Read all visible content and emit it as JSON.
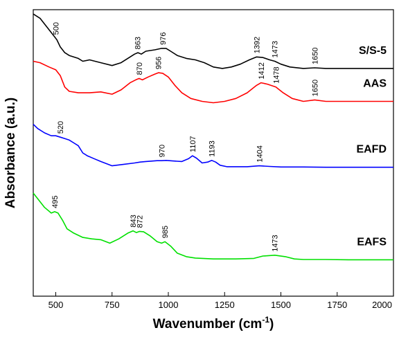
{
  "chart_data": {
    "type": "line",
    "xlabel": "Wavenumber (cm",
    "xlabel_sup": "-1",
    "xlabel_tail": ")",
    "ylabel": "Absorbance (a.u.)",
    "xlim": [
      400,
      2000
    ],
    "ylim": [
      0,
      1
    ],
    "x_ticks": [
      500,
      750,
      1000,
      1250,
      1500,
      1750,
      2000
    ],
    "grid": false,
    "series": [
      {
        "name": "S/S-5",
        "color": "#000000",
        "points": [
          [
            400,
            0.985
          ],
          [
            430,
            0.97
          ],
          [
            460,
            0.94
          ],
          [
            490,
            0.91
          ],
          [
            505,
            0.895
          ],
          [
            520,
            0.87
          ],
          [
            540,
            0.85
          ],
          [
            560,
            0.84
          ],
          [
            600,
            0.83
          ],
          [
            620,
            0.82
          ],
          [
            650,
            0.825
          ],
          [
            700,
            0.815
          ],
          [
            750,
            0.805
          ],
          [
            790,
            0.815
          ],
          [
            830,
            0.835
          ],
          [
            850,
            0.845
          ],
          [
            865,
            0.85
          ],
          [
            880,
            0.845
          ],
          [
            900,
            0.855
          ],
          [
            940,
            0.86
          ],
          [
            970,
            0.865
          ],
          [
            990,
            0.865
          ],
          [
            1010,
            0.855
          ],
          [
            1040,
            0.84
          ],
          [
            1080,
            0.83
          ],
          [
            1120,
            0.825
          ],
          [
            1160,
            0.815
          ],
          [
            1200,
            0.8
          ],
          [
            1240,
            0.795
          ],
          [
            1280,
            0.8
          ],
          [
            1320,
            0.81
          ],
          [
            1360,
            0.825
          ],
          [
            1392,
            0.835
          ],
          [
            1420,
            0.833
          ],
          [
            1450,
            0.825
          ],
          [
            1473,
            0.82
          ],
          [
            1500,
            0.81
          ],
          [
            1540,
            0.8
          ],
          [
            1600,
            0.795
          ],
          [
            1650,
            0.797
          ],
          [
            1700,
            0.795
          ],
          [
            1800,
            0.795
          ],
          [
            1900,
            0.795
          ],
          [
            2000,
            0.795
          ]
        ]
      },
      {
        "name": "AAS",
        "color": "#ff0000",
        "points": [
          [
            400,
            0.82
          ],
          [
            430,
            0.815
          ],
          [
            470,
            0.8
          ],
          [
            500,
            0.79
          ],
          [
            520,
            0.77
          ],
          [
            540,
            0.73
          ],
          [
            560,
            0.715
          ],
          [
            600,
            0.71
          ],
          [
            650,
            0.71
          ],
          [
            700,
            0.713
          ],
          [
            750,
            0.705
          ],
          [
            790,
            0.72
          ],
          [
            830,
            0.745
          ],
          [
            855,
            0.755
          ],
          [
            870,
            0.76
          ],
          [
            885,
            0.755
          ],
          [
            910,
            0.765
          ],
          [
            940,
            0.775
          ],
          [
            956,
            0.78
          ],
          [
            975,
            0.778
          ],
          [
            1000,
            0.765
          ],
          [
            1030,
            0.735
          ],
          [
            1060,
            0.71
          ],
          [
            1100,
            0.69
          ],
          [
            1150,
            0.68
          ],
          [
            1200,
            0.675
          ],
          [
            1250,
            0.68
          ],
          [
            1300,
            0.69
          ],
          [
            1350,
            0.71
          ],
          [
            1390,
            0.735
          ],
          [
            1412,
            0.745
          ],
          [
            1440,
            0.74
          ],
          [
            1478,
            0.73
          ],
          [
            1510,
            0.71
          ],
          [
            1550,
            0.69
          ],
          [
            1600,
            0.68
          ],
          [
            1650,
            0.685
          ],
          [
            1700,
            0.68
          ],
          [
            1800,
            0.68
          ],
          [
            1900,
            0.68
          ],
          [
            2000,
            0.68
          ]
        ]
      },
      {
        "name": "EAFD",
        "color": "#0000ff",
        "points": [
          [
            400,
            0.6
          ],
          [
            420,
            0.585
          ],
          [
            450,
            0.57
          ],
          [
            480,
            0.56
          ],
          [
            500,
            0.56
          ],
          [
            520,
            0.555
          ],
          [
            540,
            0.55
          ],
          [
            560,
            0.545
          ],
          [
            580,
            0.535
          ],
          [
            600,
            0.525
          ],
          [
            620,
            0.5
          ],
          [
            640,
            0.49
          ],
          [
            670,
            0.48
          ],
          [
            700,
            0.47
          ],
          [
            750,
            0.455
          ],
          [
            800,
            0.46
          ],
          [
            850,
            0.465
          ],
          [
            875,
            0.468
          ],
          [
            900,
            0.47
          ],
          [
            950,
            0.473
          ],
          [
            970,
            0.473
          ],
          [
            990,
            0.474
          ],
          [
            1020,
            0.472
          ],
          [
            1060,
            0.47
          ],
          [
            1090,
            0.48
          ],
          [
            1107,
            0.49
          ],
          [
            1125,
            0.482
          ],
          [
            1150,
            0.465
          ],
          [
            1175,
            0.468
          ],
          [
            1193,
            0.474
          ],
          [
            1210,
            0.468
          ],
          [
            1230,
            0.457
          ],
          [
            1260,
            0.452
          ],
          [
            1300,
            0.452
          ],
          [
            1350,
            0.452
          ],
          [
            1404,
            0.455
          ],
          [
            1450,
            0.453
          ],
          [
            1500,
            0.451
          ],
          [
            1600,
            0.451
          ],
          [
            1700,
            0.45
          ],
          [
            1800,
            0.45
          ],
          [
            1900,
            0.45
          ],
          [
            2000,
            0.45
          ]
        ]
      },
      {
        "name": "EAFS",
        "color": "#00e000",
        "points": [
          [
            400,
            0.36
          ],
          [
            420,
            0.34
          ],
          [
            450,
            0.31
          ],
          [
            480,
            0.29
          ],
          [
            495,
            0.295
          ],
          [
            510,
            0.29
          ],
          [
            530,
            0.265
          ],
          [
            550,
            0.235
          ],
          [
            580,
            0.22
          ],
          [
            620,
            0.205
          ],
          [
            660,
            0.2
          ],
          [
            700,
            0.197
          ],
          [
            740,
            0.185
          ],
          [
            780,
            0.2
          ],
          [
            820,
            0.22
          ],
          [
            843,
            0.228
          ],
          [
            858,
            0.222
          ],
          [
            872,
            0.226
          ],
          [
            890,
            0.225
          ],
          [
            920,
            0.21
          ],
          [
            950,
            0.19
          ],
          [
            970,
            0.185
          ],
          [
            985,
            0.19
          ],
          [
            1010,
            0.175
          ],
          [
            1040,
            0.15
          ],
          [
            1080,
            0.138
          ],
          [
            1120,
            0.133
          ],
          [
            1200,
            0.13
          ],
          [
            1300,
            0.13
          ],
          [
            1380,
            0.132
          ],
          [
            1420,
            0.14
          ],
          [
            1473,
            0.143
          ],
          [
            1520,
            0.138
          ],
          [
            1560,
            0.13
          ],
          [
            1600,
            0.128
          ],
          [
            1700,
            0.128
          ],
          [
            1800,
            0.127
          ],
          [
            1900,
            0.127
          ],
          [
            2000,
            0.127
          ]
        ]
      }
    ],
    "peak_annotations": [
      {
        "text": "500",
        "x": 500,
        "series": 0
      },
      {
        "text": "863",
        "x": 863,
        "series": 0
      },
      {
        "text": "976",
        "x": 976,
        "series": 0
      },
      {
        "text": "1392",
        "x": 1392,
        "series": 0
      },
      {
        "text": "1473",
        "x": 1473,
        "series": 0
      },
      {
        "text": "1650",
        "x": 1650,
        "series": 0
      },
      {
        "text": "870",
        "x": 870,
        "series": 1
      },
      {
        "text": "956",
        "x": 956,
        "series": 1
      },
      {
        "text": "1412",
        "x": 1412,
        "series": 1
      },
      {
        "text": "1478",
        "x": 1478,
        "series": 1
      },
      {
        "text": "1650",
        "x": 1650,
        "series": 1
      },
      {
        "text": "520",
        "x": 520,
        "series": 2
      },
      {
        "text": "970",
        "x": 970,
        "series": 2
      },
      {
        "text": "1107",
        "x": 1107,
        "series": 2
      },
      {
        "text": "1193",
        "x": 1193,
        "series": 2
      },
      {
        "text": "1404",
        "x": 1404,
        "series": 2
      },
      {
        "text": "495",
        "x": 495,
        "series": 3
      },
      {
        "text": "843",
        "x": 843,
        "series": 3
      },
      {
        "text": "872",
        "x": 872,
        "series": 3
      },
      {
        "text": "985",
        "x": 985,
        "series": 3
      },
      {
        "text": "1473",
        "x": 1473,
        "series": 3
      }
    ]
  }
}
